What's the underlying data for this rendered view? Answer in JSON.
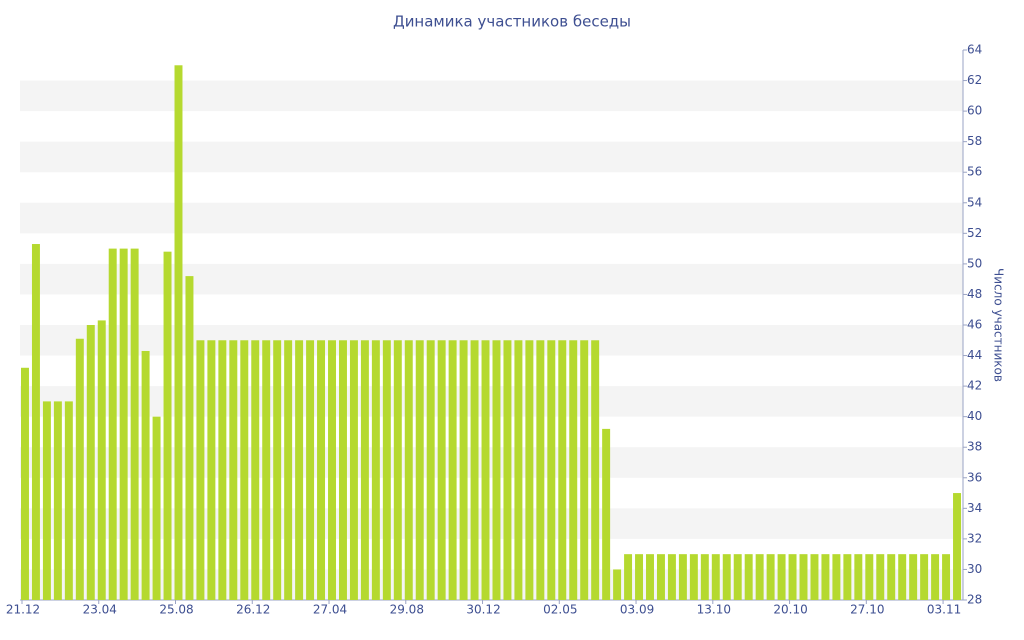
{
  "chart_data": {
    "type": "bar",
    "title": "Динамика участников беседы",
    "y_label": "Число участников",
    "categories": [
      "21.12",
      null,
      null,
      null,
      null,
      null,
      null,
      "23.04",
      null,
      null,
      null,
      null,
      null,
      null,
      "25.08",
      null,
      null,
      null,
      null,
      null,
      null,
      "26.12",
      null,
      null,
      null,
      null,
      null,
      null,
      "27.04",
      null,
      null,
      null,
      null,
      null,
      null,
      "29.08",
      null,
      null,
      null,
      null,
      null,
      null,
      "30.12",
      null,
      null,
      null,
      null,
      null,
      null,
      "02.05",
      null,
      null,
      null,
      null,
      null,
      null,
      "03.09",
      null,
      null,
      null,
      null,
      null,
      null,
      "13.10",
      null,
      null,
      null,
      null,
      null,
      null,
      "20.10",
      null,
      null,
      null,
      null,
      null,
      null,
      "27.10",
      null,
      null,
      null,
      null,
      null,
      null,
      "03.11",
      null
    ],
    "values": [
      43.2,
      51.3,
      41,
      41,
      41,
      45.1,
      46,
      46.3,
      51,
      51,
      51,
      44.3,
      40,
      50.8,
      63,
      49.2,
      45,
      45,
      45,
      45,
      45,
      45,
      45,
      45,
      45,
      45,
      45,
      45,
      45,
      45,
      45,
      45,
      45,
      45,
      45,
      45,
      45,
      45,
      45,
      45,
      45,
      45,
      45,
      45,
      45,
      45,
      45,
      45,
      45,
      45,
      45,
      45,
      45,
      39.2,
      30,
      31,
      31,
      31,
      31,
      31,
      31,
      31,
      31,
      31,
      31,
      31,
      31,
      31,
      31,
      31,
      31,
      31,
      31,
      31,
      31,
      31,
      31,
      31,
      31,
      31,
      31,
      31,
      31,
      31,
      31,
      35
    ],
    "color": "#b5d92f",
    "ylim": [
      28,
      64
    ],
    "yticks": [
      28,
      30,
      32,
      34,
      36,
      38,
      40,
      42,
      44,
      46,
      48,
      50,
      52,
      54,
      56,
      58,
      60,
      62,
      64
    ],
    "y_axis_side": "right",
    "grid": true
  }
}
